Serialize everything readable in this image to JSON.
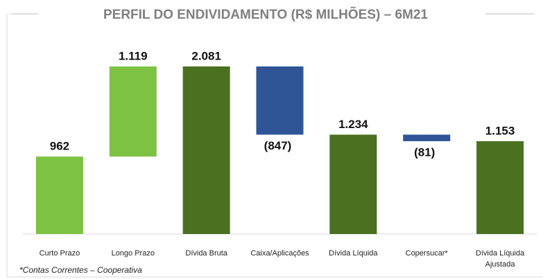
{
  "chart_data": {
    "type": "waterfall",
    "title": "PERFIL DO ENDIVIDAMENTO (R$ MILHÕES) – 6M21",
    "categories": [
      "Curto Prazo",
      "Longo Prazo",
      "Dívida Bruta",
      "Caixa/Aplicações",
      "Dívida Líquida",
      "Copersucar*",
      "Dívida Líquida Ajustada"
    ],
    "values": [
      962,
      1119,
      2081,
      -847,
      1234,
      -81,
      1153
    ],
    "value_labels": [
      "962",
      "1.119",
      "2.081",
      "(847)",
      "1.234",
      "(81)",
      "1.153"
    ],
    "measures": [
      "absolute",
      "relative",
      "total",
      "relative",
      "total",
      "relative",
      "total"
    ],
    "colors": [
      "#7dc242",
      "#7dc242",
      "#4a7020",
      "#2f5597",
      "#4a7020",
      "#2f5597",
      "#4a7020"
    ],
    "footnote": "*Contas Correntes – Cooperativa"
  }
}
